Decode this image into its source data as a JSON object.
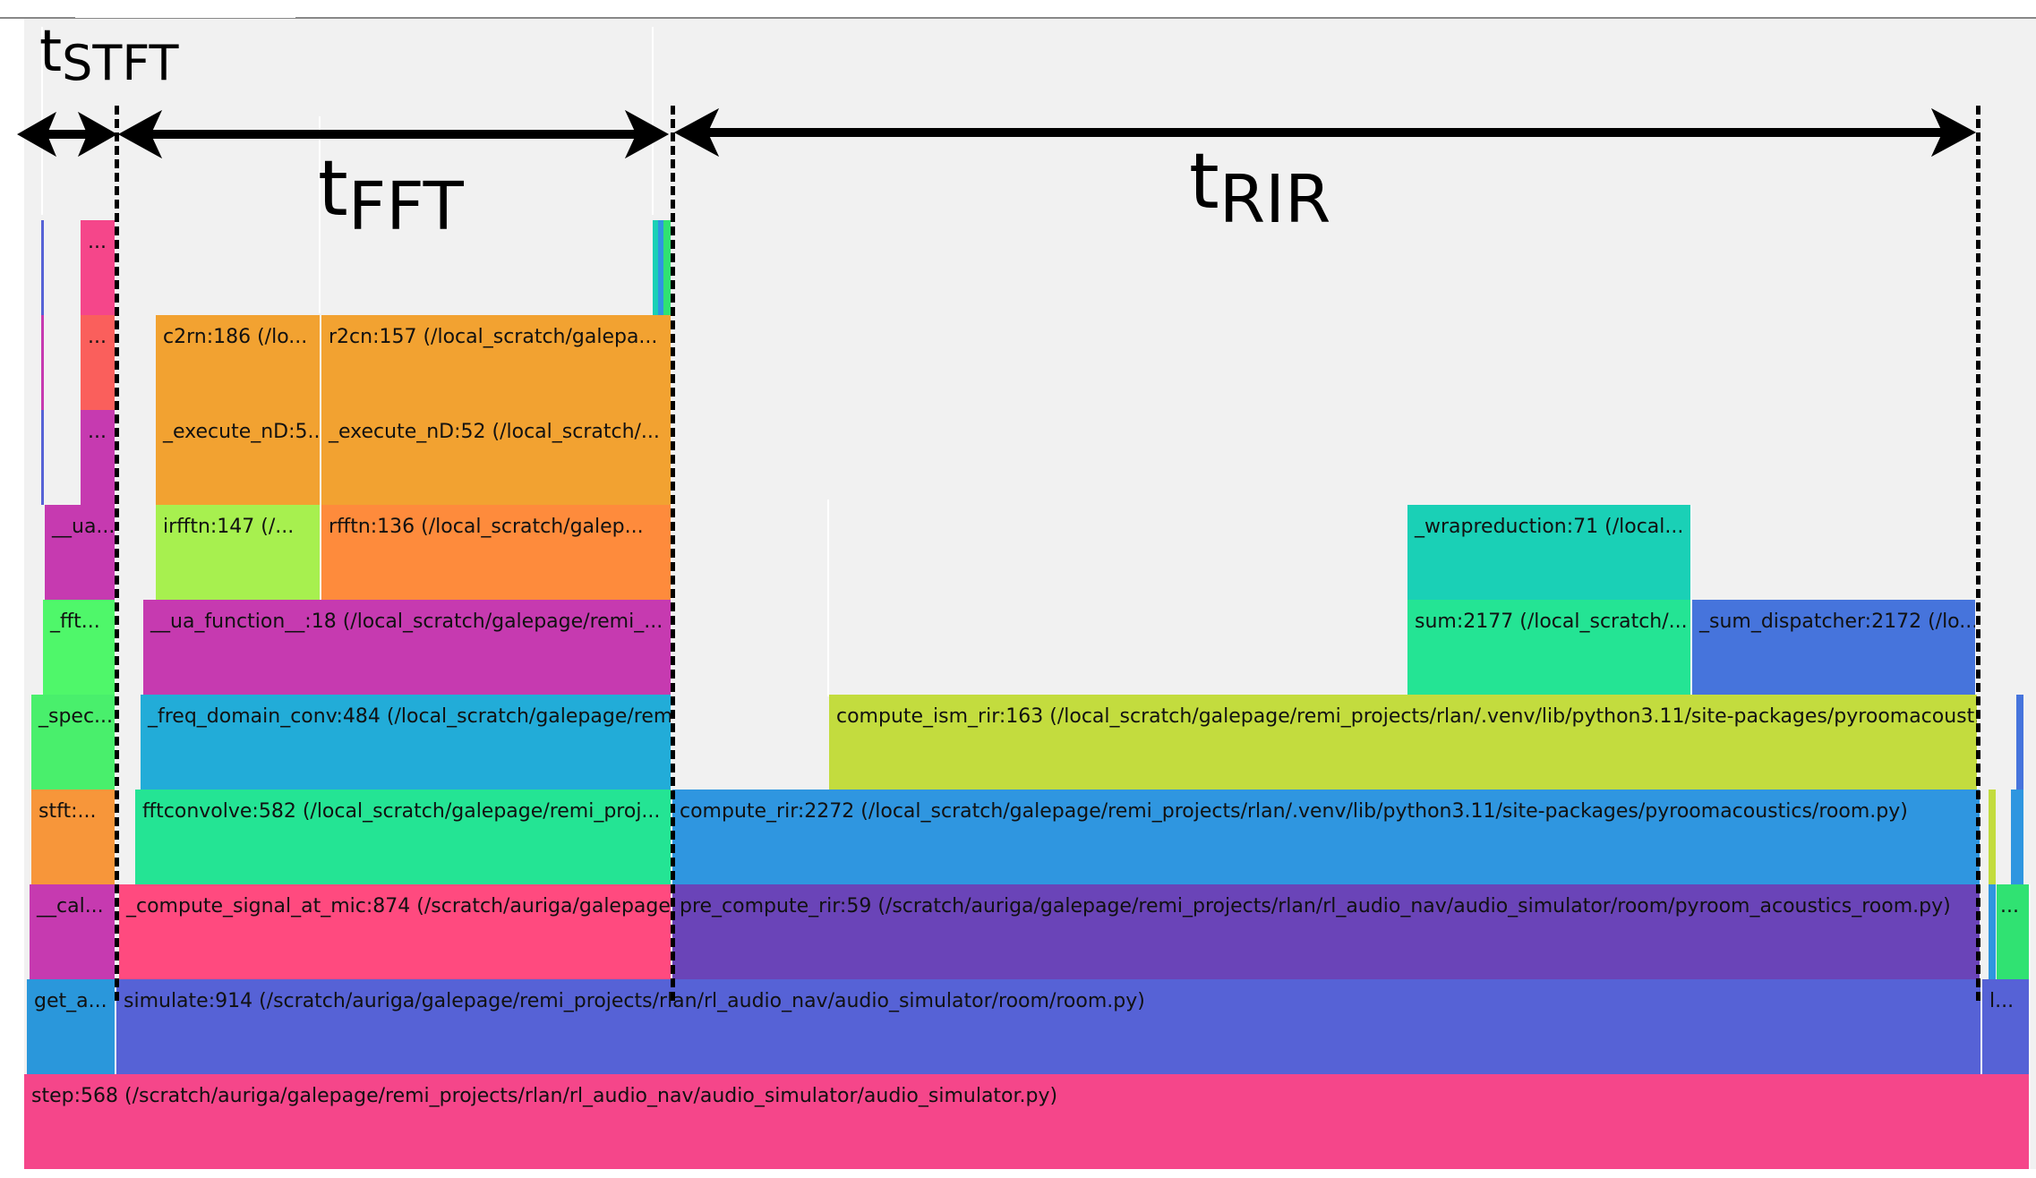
{
  "annotations": {
    "t_stft": {
      "main": "t",
      "sub": "STFT"
    },
    "t_fft": {
      "main": "t",
      "sub": "FFT"
    },
    "t_rir": {
      "main": "t",
      "sub": "RIR"
    }
  },
  "frames": [
    {
      "id": "step",
      "label": "step:568 (/scratch/auriga/galepage/remi_projects/rlan/rl_audio_nav/audio_simulator/audio_simulator.py)",
      "color": "#f5468a"
    },
    {
      "id": "get_a",
      "label": "get_a...",
      "color": "#2a97db"
    },
    {
      "id": "simulate",
      "label": "simulate:914 (/scratch/auriga/galepage/remi_projects/rlan/rl_audio_nav/audio_simulator/room/room.py)",
      "color": "#5662d6"
    },
    {
      "id": "l_small",
      "label": "l...",
      "color": "#5662d6"
    },
    {
      "id": "cal",
      "label": "__cal...",
      "color": "#c63ab0"
    },
    {
      "id": "compute_signal",
      "label": "_compute_signal_at_mic:874 (/scratch/auriga/galepage...",
      "color": "#ff4a7f"
    },
    {
      "id": "pre_compute_rir",
      "label": "pre_compute_rir:59 (/scratch/auriga/galepage/remi_projects/rlan/rl_audio_nav/audio_simulator/room/pyroom_acoustics_room.py)",
      "color": "#6a44b8"
    },
    {
      "id": "right_green",
      "label": "...",
      "color": "#30e272"
    },
    {
      "id": "stft",
      "label": "stft:...",
      "color": "#f7963a"
    },
    {
      "id": "fftconvolve",
      "label": "fftconvolve:582 (/local_scratch/galepage/remi_proj...",
      "color": "#24e494"
    },
    {
      "id": "compute_rir",
      "label": "compute_rir:2272 (/local_scratch/galepage/remi_projects/rlan/.venv/lib/python3.11/site-packages/pyroomacoustics/room.py)",
      "color": "#2f96e0"
    },
    {
      "id": "spec",
      "label": "_spec...",
      "color": "#49ef6c"
    },
    {
      "id": "freq_domain_conv",
      "label": "_freq_domain_conv:484 (/local_scratch/galepage/rem...",
      "color": "#22acd8"
    },
    {
      "id": "compute_ism_rir",
      "label": "compute_ism_rir:163 (/local_scratch/galepage/remi_projects/rlan/.venv/lib/python3.11/site-packages/pyroomacoust...",
      "color": "#c3dc3e"
    },
    {
      "id": "fft_left",
      "label": "_fft...",
      "color": "#4ff76a"
    },
    {
      "id": "ua_function",
      "label": "__ua_function__:18 (/local_scratch/galepage/remi_...",
      "color": "#c63ab0"
    },
    {
      "id": "sum",
      "label": "sum:2177 (/local_scratch/...",
      "color": "#24e494"
    },
    {
      "id": "sum_dispatcher",
      "label": "_sum_dispatcher:2172 (/lo...",
      "color": "#4674dc"
    },
    {
      "id": "ua_left",
      "label": "__ua...",
      "color": "#c63ab0"
    },
    {
      "id": "irfftn",
      "label": "irfftn:147 (/...",
      "color": "#a7f04f"
    },
    {
      "id": "rfftn",
      "label": "rfftn:136 (/local_scratch/galep...",
      "color": "#fe8b3c"
    },
    {
      "id": "wrapreduction",
      "label": "_wrapreduction:71 (/local...",
      "color": "#1ad0b6"
    },
    {
      "id": "dots_purple",
      "label": "...",
      "color": "#c63ab0"
    },
    {
      "id": "execute_nd_a",
      "label": "_execute_nD:5...",
      "color": "#f2a231"
    },
    {
      "id": "execute_nd_b",
      "label": "_execute_nD:52 (/local_scratch/...",
      "color": "#f2a231"
    },
    {
      "id": "dots_red",
      "label": "...",
      "color": "#fa5f5c"
    },
    {
      "id": "c2rn",
      "label": "c2rn:186 (/lo...",
      "color": "#f2a231"
    },
    {
      "id": "r2cn",
      "label": "r2cn:157 (/local_scratch/galepa...",
      "color": "#f2a231"
    },
    {
      "id": "dots_pink",
      "label": "...",
      "color": "#f5468a"
    }
  ]
}
